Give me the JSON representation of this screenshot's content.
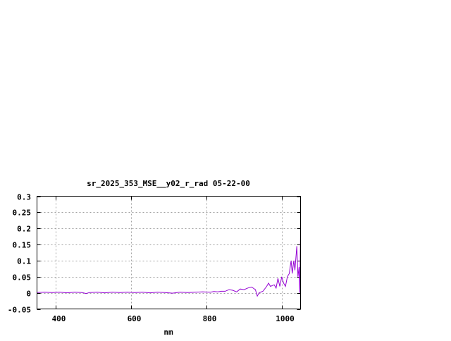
{
  "chart_data": {
    "type": "line",
    "title": "sr_2025_353_MSE__y02_r_rad 05-22-00",
    "xlabel": "nm",
    "ylabel": "",
    "xlim": [
      350,
      1050
    ],
    "ylim": [
      -0.05,
      0.3
    ],
    "grid": true,
    "x_ticks": [
      400,
      600,
      800,
      1000
    ],
    "x_tick_labels": [
      "400",
      "600",
      "800",
      "1000"
    ],
    "y_ticks": [
      -0.05,
      0,
      0.05,
      0.1,
      0.15,
      0.2,
      0.25,
      0.3
    ],
    "y_tick_labels": [
      "-0.05",
      "0",
      "0.05",
      "0.1",
      "0.15",
      "0.2",
      "0.25",
      "0.3"
    ],
    "line_color": "#9400d3",
    "series": [
      {
        "x": [
          350,
          370,
          390,
          410,
          430,
          450,
          470,
          480,
          490,
          510,
          530,
          550,
          570,
          590,
          610,
          630,
          650,
          670,
          690,
          710,
          730,
          750,
          770,
          790,
          810,
          820,
          830,
          840,
          850,
          860,
          870,
          880,
          890,
          900,
          910,
          920,
          930,
          935,
          940,
          950,
          960,
          965,
          970,
          980,
          985,
          990,
          995,
          1000,
          1005,
          1010,
          1015,
          1020,
          1025,
          1028,
          1032,
          1035,
          1040,
          1043,
          1046,
          1048,
          1050
        ],
        "y": [
          0.001,
          0.002,
          0.001,
          0.002,
          0.0,
          0.002,
          0.001,
          -0.002,
          0.001,
          0.002,
          0.0,
          0.002,
          0.001,
          0.002,
          0.001,
          0.002,
          0.0,
          0.002,
          0.001,
          -0.001,
          0.002,
          0.001,
          0.002,
          0.003,
          0.002,
          0.004,
          0.003,
          0.005,
          0.005,
          0.01,
          0.008,
          0.003,
          0.012,
          0.01,
          0.015,
          0.018,
          0.01,
          -0.01,
          0.0,
          0.005,
          0.02,
          0.03,
          0.02,
          0.025,
          0.015,
          0.045,
          0.02,
          0.05,
          0.03,
          0.02,
          0.05,
          0.06,
          0.1,
          0.06,
          0.1,
          0.07,
          0.145,
          0.05,
          0.08,
          0.0,
          0.19
        ]
      }
    ]
  }
}
